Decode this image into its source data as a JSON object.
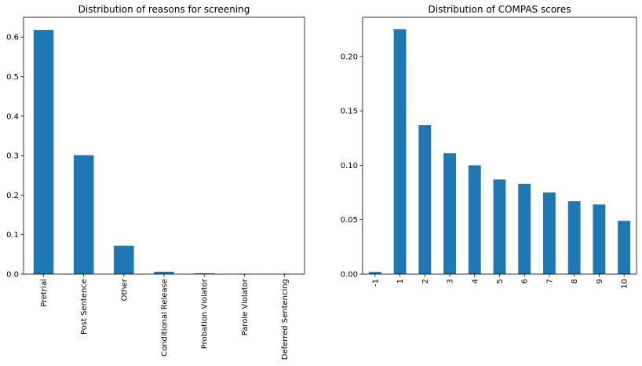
{
  "chart_data": [
    {
      "type": "bar",
      "title": "Distribution of reasons for screening",
      "categories": [
        "Pretrial",
        "Post Sentence",
        "Other",
        "Conditional Release",
        "Probation Violator",
        "Parole Violator",
        "Deferred Sentencing"
      ],
      "values": [
        0.618,
        0.301,
        0.072,
        0.006,
        0.002,
        0.0005,
        0.0003
      ],
      "ylim": [
        0,
        0.65
      ],
      "yticks": [
        0.0,
        0.1,
        0.2,
        0.3,
        0.4,
        0.5,
        0.6
      ],
      "ytick_labels": [
        "0.0",
        "0.1",
        "0.2",
        "0.3",
        "0.4",
        "0.5",
        "0.6"
      ],
      "xlabel": "",
      "ylabel": "",
      "color": "#1f77b4",
      "grid": false,
      "xtick_rotation": 90
    },
    {
      "type": "bar",
      "title": "Distribution of COMPAS scores",
      "categories": [
        "-1",
        "1",
        "2",
        "3",
        "4",
        "5",
        "6",
        "7",
        "8",
        "9",
        "10"
      ],
      "values": [
        0.002,
        0.225,
        0.137,
        0.111,
        0.1,
        0.087,
        0.083,
        0.075,
        0.067,
        0.064,
        0.049
      ],
      "ylim": [
        0,
        0.236
      ],
      "yticks": [
        0.0,
        0.05,
        0.1,
        0.15,
        0.2
      ],
      "ytick_labels": [
        "0.00",
        "0.05",
        "0.10",
        "0.15",
        "0.20"
      ],
      "xlabel": "",
      "ylabel": "",
      "color": "#1f77b4",
      "grid": false,
      "xtick_rotation": 90
    }
  ]
}
